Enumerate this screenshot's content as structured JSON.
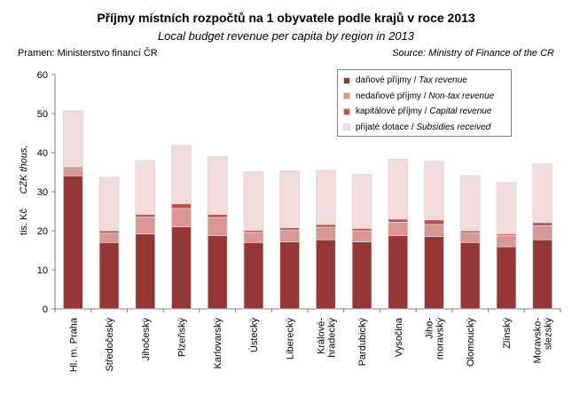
{
  "header": {
    "title": "Příjmy místních rozpočtů na 1 obyvatele podle krajů v roce 2013",
    "title_en": "Local budget revenue per capita by region in 2013",
    "source_cz": "Pramen: Ministerstvo financí ČR",
    "source_en": "Source: Ministry of Finance of the CR"
  },
  "colors": {
    "tax": "#943634",
    "nontax": "#d99694",
    "capital": "#c0504d",
    "subsidies": "#f2dcdb",
    "bar_border": "#d9d9d9",
    "axis": "#7f7f7f"
  },
  "legend": {
    "items": [
      {
        "cz": "daňové příjmy / ",
        "en": "Tax revenue",
        "color": "#943634"
      },
      {
        "cz": "nedaňové příjmy / ",
        "en": "Non-tax revenue",
        "color": "#d99694"
      },
      {
        "cz": "kapitálové příjmy / ",
        "en": "Capital revenue",
        "color": "#c0504d"
      },
      {
        "cz": "přijaté dotace / ",
        "en": "Subsidies received",
        "color": "#f2dcdb"
      }
    ]
  },
  "chart_data": {
    "type": "bar",
    "stacked": true,
    "ylabel": "tis. Kč",
    "ylabel_en": "CZK thous.",
    "ylim": [
      0,
      60
    ],
    "yticks": [
      0,
      10,
      20,
      30,
      40,
      50,
      60
    ],
    "categories": [
      [
        "Hl. m. Praha"
      ],
      [
        "Středočeský"
      ],
      [
        "Jihočeský"
      ],
      [
        "Plzeňský"
      ],
      [
        "Karlovarský"
      ],
      [
        "Ústecký"
      ],
      [
        "Liberecký"
      ],
      [
        "Králové-",
        "hradecký"
      ],
      [
        "Pardubický"
      ],
      [
        "Vysočina"
      ],
      [
        "Jiho-",
        "moravský"
      ],
      [
        "Olomoucký"
      ],
      [
        "Zlínský"
      ],
      [
        "Moravsko-",
        "slezský"
      ]
    ],
    "series": [
      {
        "name": "daňové příjmy / Tax revenue",
        "color": "#943634",
        "values": [
          34.1,
          17.0,
          19.2,
          21.0,
          18.8,
          17.0,
          17.2,
          17.7,
          17.2,
          18.8,
          18.5,
          17.0,
          15.9,
          17.7
        ]
      },
      {
        "name": "nedaňové příjmy / Non-tax revenue",
        "color": "#d99694",
        "values": [
          1.8,
          2.4,
          4.3,
          4.7,
          4.6,
          2.6,
          3.0,
          3.2,
          2.8,
          3.4,
          3.1,
          2.5,
          2.9,
          3.6
        ]
      },
      {
        "name": "kapitálové příjmy / Capital revenue",
        "color": "#c0504d",
        "values": [
          0.4,
          0.6,
          0.7,
          1.2,
          0.8,
          0.5,
          0.6,
          0.7,
          0.6,
          0.8,
          1.2,
          0.5,
          0.4,
          0.8
        ]
      },
      {
        "name": "přijaté dotace / Subsidies received",
        "color": "#f2dcdb",
        "values": [
          14.4,
          13.7,
          13.8,
          15.0,
          14.8,
          15.0,
          14.6,
          13.9,
          13.8,
          15.3,
          15.0,
          14.1,
          13.2,
          15.0
        ]
      }
    ]
  }
}
